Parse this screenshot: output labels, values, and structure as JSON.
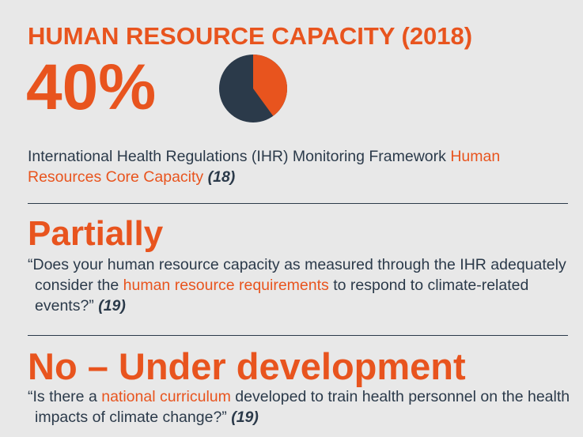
{
  "header": {
    "title": "HUMAN RESOURCE CAPACITY (2018)"
  },
  "stat": {
    "value": 40,
    "label": "40%"
  },
  "sections": [
    {
      "text": [
        "International Health Regulations (IHR) Monitoring Framework ",
        "Human Resources Core Capacity",
        " (18)"
      ]
    },
    {
      "answer": "Partially",
      "text": [
        "“Does your human resource capacity as measured through the IHR adequately consider the ",
        "human resource requirements",
        " to respond to climate-related events?”",
        " (19)"
      ]
    },
    {
      "answer": "No – Under development",
      "text": [
        "“Is there a ",
        "national curriculum",
        " developed to train health personnel on the health impacts of climate change?”",
        " (19)"
      ]
    }
  ]
}
